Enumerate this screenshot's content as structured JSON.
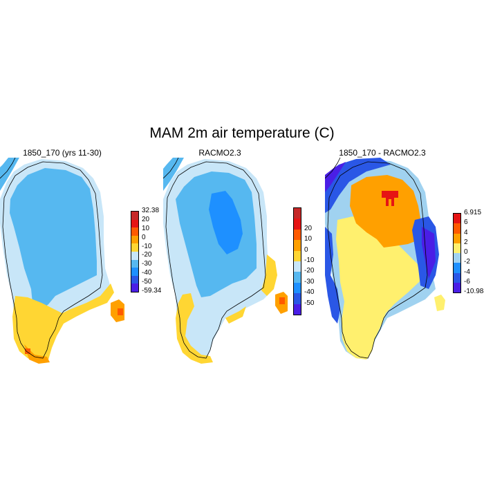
{
  "title": "MAM 2m air temperature (C)",
  "panels": [
    {
      "title": "1850_170 (yrs 11-30)",
      "colorbar": {
        "colors": [
          "#4a1ee6",
          "#2a57e6",
          "#1e90ff",
          "#56b8f0",
          "#c8e6f8",
          "#ffd633",
          "#ffa000",
          "#ff5a00",
          "#e61414",
          "#c62828"
        ],
        "labels": [
          "-59.34",
          "-50",
          "-40",
          "-30",
          "-20",
          "-10",
          "0",
          "10",
          "20",
          "32.38"
        ]
      }
    },
    {
      "title": "RACMO2.3",
      "colorbar": {
        "colors": [
          "#4a1ee6",
          "#2a57e6",
          "#1e90ff",
          "#56b8f0",
          "#c8e6f8",
          "#ffd633",
          "#ffa000",
          "#ff5a00",
          "#e61414",
          "#c62828"
        ],
        "labels": [
          "-50",
          "-40",
          "-30",
          "-20",
          "-10",
          "0",
          "10",
          "20"
        ]
      }
    },
    {
      "title": "1850_170 - RACMO2.3",
      "colorbar": {
        "colors": [
          "#4a1ee6",
          "#2a57e6",
          "#1e90ff",
          "#a0d2f0",
          "#fff06e",
          "#ffa000",
          "#ff5a00",
          "#e61414"
        ],
        "labels": [
          "-10.988",
          "-6",
          "-4",
          "-2",
          "0",
          "2",
          "4",
          "6",
          "6.915"
        ]
      }
    }
  ]
}
